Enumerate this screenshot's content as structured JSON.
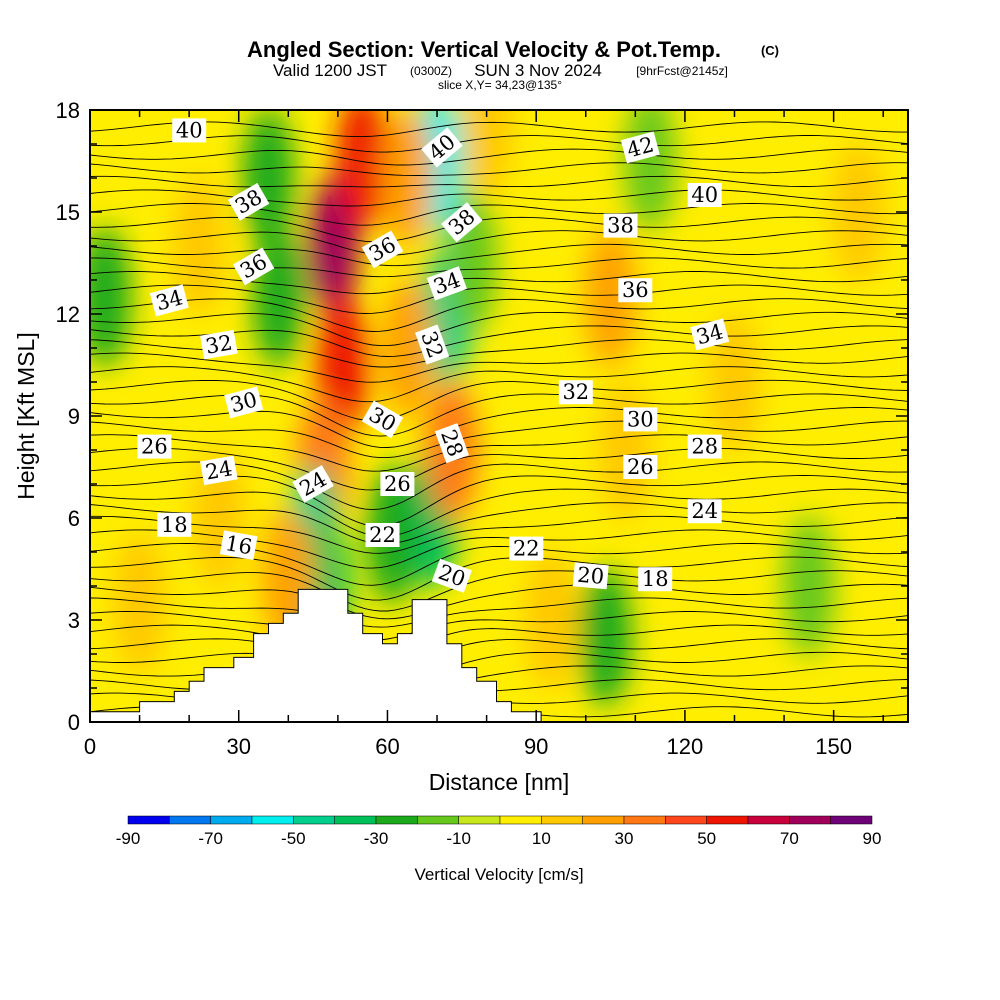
{
  "title": {
    "main": "Angled Section: Vertical Velocity & Pot.Temp.",
    "main_units": "(C)",
    "line2_a": "Valid 1200 JST",
    "line2_b": "(0300Z)",
    "line2_c": "SUN 3 Nov 2024",
    "line2_d": "[9hrFcst@2145z]",
    "line3": "slice X,Y= 34,23@135°"
  },
  "chart_data": {
    "type": "heatmap",
    "xlabel": "Distance [nm]",
    "ylabel": "Height [Kft MSL]",
    "xlim": [
      0,
      165
    ],
    "ylim": [
      0,
      18
    ],
    "x_ticks": [
      0,
      30,
      60,
      90,
      120,
      150
    ],
    "y_ticks": [
      0,
      3,
      6,
      9,
      12,
      15,
      18
    ],
    "colorbar": {
      "label": "Vertical Velocity [cm/s]",
      "ticks": [
        -90,
        -70,
        -50,
        -30,
        -10,
        10,
        30,
        50,
        70,
        90
      ],
      "bins": [
        -90,
        -80,
        -70,
        -60,
        -50,
        -40,
        -30,
        -20,
        -10,
        0,
        10,
        20,
        30,
        40,
        50,
        60,
        70,
        80,
        90
      ],
      "colors": [
        "#0000ee",
        "#0077ee",
        "#00aaee",
        "#00eeee",
        "#00d08c",
        "#00c05a",
        "#1caa1c",
        "#66c81c",
        "#c8e61c",
        "#ffee00",
        "#ffc800",
        "#ffa000",
        "#ff7814",
        "#ff461c",
        "#ee1400",
        "#c8003c",
        "#a0005a",
        "#6e0078"
      ]
    },
    "terrain_profile": [
      [
        0,
        0.3
      ],
      [
        10,
        0.3
      ],
      [
        10,
        0.6
      ],
      [
        17,
        0.6
      ],
      [
        17,
        0.9
      ],
      [
        20,
        0.9
      ],
      [
        20,
        1.2
      ],
      [
        23,
        1.2
      ],
      [
        23,
        1.6
      ],
      [
        29,
        1.6
      ],
      [
        29,
        1.9
      ],
      [
        33,
        1.9
      ],
      [
        33,
        2.6
      ],
      [
        36,
        2.6
      ],
      [
        36,
        2.9
      ],
      [
        39,
        2.9
      ],
      [
        39,
        3.2
      ],
      [
        42,
        3.2
      ],
      [
        42,
        3.9
      ],
      [
        52,
        3.9
      ],
      [
        52,
        3.2
      ],
      [
        55,
        3.2
      ],
      [
        55,
        2.6
      ],
      [
        59,
        2.6
      ],
      [
        59,
        2.3
      ],
      [
        62,
        2.3
      ],
      [
        62,
        2.6
      ],
      [
        65,
        2.6
      ],
      [
        65,
        3.6
      ],
      [
        72,
        3.6
      ],
      [
        72,
        2.3
      ],
      [
        75,
        2.3
      ],
      [
        75,
        1.6
      ],
      [
        78,
        1.6
      ],
      [
        78,
        1.2
      ],
      [
        82,
        1.2
      ],
      [
        82,
        0.6
      ],
      [
        85,
        0.6
      ],
      [
        85,
        0.3
      ],
      [
        91,
        0.3
      ],
      [
        91,
        0
      ],
      [
        165,
        0
      ]
    ],
    "w_features": [
      {
        "x": 49,
        "y": 14.0,
        "w": 75
      },
      {
        "x": 51,
        "y": 10.5,
        "w": 55
      },
      {
        "x": 47,
        "y": 7.5,
        "w": 35
      },
      {
        "x": 55,
        "y": 16.5,
        "w": 50
      },
      {
        "x": 38,
        "y": 12.5,
        "w": -25
      },
      {
        "x": 36,
        "y": 16.0,
        "w": -25
      },
      {
        "x": 45,
        "y": 5.5,
        "w": -50
      },
      {
        "x": 47,
        "y": 4.0,
        "w": -40
      },
      {
        "x": 70,
        "y": 16.5,
        "w": -55
      },
      {
        "x": 72,
        "y": 12.0,
        "w": -45
      },
      {
        "x": 69,
        "y": 6.0,
        "w": -40
      },
      {
        "x": 61,
        "y": 5.5,
        "w": -30
      },
      {
        "x": 77,
        "y": 13.5,
        "w": -20
      },
      {
        "x": 64,
        "y": 16.0,
        "w": 25
      },
      {
        "x": 64,
        "y": 11.0,
        "w": 25
      },
      {
        "x": 73,
        "y": 8.0,
        "w": 30
      },
      {
        "x": 40,
        "y": 4.2,
        "w": 25
      },
      {
        "x": 104,
        "y": 2.5,
        "w": -25
      },
      {
        "x": 105,
        "y": 12.5,
        "w": 22
      },
      {
        "x": 108,
        "y": 8.0,
        "w": 15
      },
      {
        "x": 22,
        "y": 14.0,
        "w": 18
      },
      {
        "x": 26,
        "y": 6.0,
        "w": 12
      },
      {
        "x": 3,
        "y": 12.5,
        "w": -22
      },
      {
        "x": 10,
        "y": 3.5,
        "w": 14
      },
      {
        "x": 93,
        "y": 3.0,
        "w": 14
      },
      {
        "x": 130,
        "y": 10.0,
        "w": 14
      },
      {
        "x": 155,
        "y": 15.0,
        "w": 14
      },
      {
        "x": 113,
        "y": 16.5,
        "w": -15
      },
      {
        "x": 145,
        "y": 4.0,
        "w": -15
      },
      {
        "x": 80,
        "y": 17.5,
        "w": 15
      }
    ],
    "isentrope_labels": [
      {
        "text": "40",
        "x": 20,
        "y": 17.4,
        "angle": 0
      },
      {
        "text": "38",
        "x": 32,
        "y": 15.3,
        "angle": 30
      },
      {
        "text": "36",
        "x": 33,
        "y": 13.4,
        "angle": 30
      },
      {
        "text": "34",
        "x": 16,
        "y": 12.4,
        "angle": 15
      },
      {
        "text": "32",
        "x": 26,
        "y": 11.1,
        "angle": 10
      },
      {
        "text": "30",
        "x": 31,
        "y": 9.4,
        "angle": 15
      },
      {
        "text": "26",
        "x": 13,
        "y": 8.1,
        "angle": 0
      },
      {
        "text": "24",
        "x": 26,
        "y": 7.4,
        "angle": 10
      },
      {
        "text": "18",
        "x": 17,
        "y": 5.8,
        "angle": 0
      },
      {
        "text": "16",
        "x": 30,
        "y": 5.2,
        "angle": -10
      },
      {
        "text": "24",
        "x": 45,
        "y": 7.0,
        "angle": 30
      },
      {
        "text": "36",
        "x": 59,
        "y": 13.9,
        "angle": 30
      },
      {
        "text": "30",
        "x": 59,
        "y": 8.9,
        "angle": -30
      },
      {
        "text": "26",
        "x": 62,
        "y": 7.0,
        "angle": 0
      },
      {
        "text": "22",
        "x": 59,
        "y": 5.5,
        "angle": 0
      },
      {
        "text": "40",
        "x": 71,
        "y": 16.9,
        "angle": 40
      },
      {
        "text": "38",
        "x": 75,
        "y": 14.7,
        "angle": 40
      },
      {
        "text": "34",
        "x": 72,
        "y": 12.9,
        "angle": 20
      },
      {
        "text": "32",
        "x": 69,
        "y": 11.1,
        "angle": -70
      },
      {
        "text": "28",
        "x": 73,
        "y": 8.2,
        "angle": -70
      },
      {
        "text": "20",
        "x": 73,
        "y": 4.3,
        "angle": -20
      },
      {
        "text": "22",
        "x": 88,
        "y": 5.1,
        "angle": 0
      },
      {
        "text": "20",
        "x": 101,
        "y": 4.3,
        "angle": -5
      },
      {
        "text": "18",
        "x": 114,
        "y": 4.2,
        "angle": 0
      },
      {
        "text": "32",
        "x": 98,
        "y": 9.7,
        "angle": 0
      },
      {
        "text": "30",
        "x": 111,
        "y": 8.9,
        "angle": 0
      },
      {
        "text": "26",
        "x": 111,
        "y": 7.5,
        "angle": 0
      },
      {
        "text": "28",
        "x": 124,
        "y": 8.1,
        "angle": 0
      },
      {
        "text": "24",
        "x": 124,
        "y": 6.2,
        "angle": 0
      },
      {
        "text": "38",
        "x": 107,
        "y": 14.6,
        "angle": 0
      },
      {
        "text": "36",
        "x": 110,
        "y": 12.7,
        "angle": 0
      },
      {
        "text": "34",
        "x": 125,
        "y": 11.4,
        "angle": 15
      },
      {
        "text": "40",
        "x": 124,
        "y": 15.5,
        "angle": 0
      },
      {
        "text": "42",
        "x": 111,
        "y": 16.9,
        "angle": 15
      }
    ]
  }
}
